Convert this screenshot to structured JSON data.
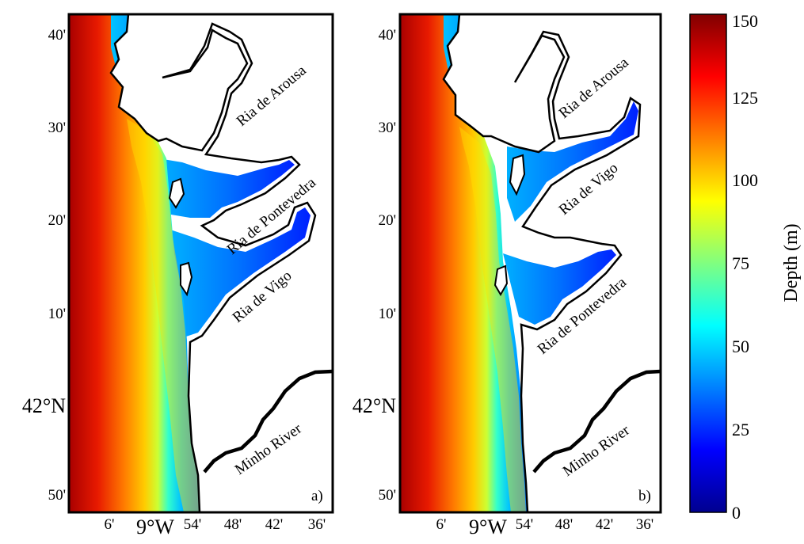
{
  "colorbar": {
    "label": "Depth (m)",
    "ticks": [
      "0",
      "25",
      "50",
      "75",
      "100",
      "125",
      "150"
    ],
    "range": [
      0,
      150
    ],
    "colors": [
      "#00008f",
      "#0000ff",
      "#0080ff",
      "#00ffff",
      "#80ff80",
      "#ffff00",
      "#ff8000",
      "#ff0000",
      "#800000"
    ]
  },
  "lat_ticks": [
    "40'",
    "30'",
    "20'",
    "10'",
    "42°N",
    "50'"
  ],
  "lon_ticks": [
    "6'",
    "9°W",
    "54'",
    "48'",
    "42'",
    "36'"
  ],
  "panels": [
    {
      "id": "a",
      "panel_label": "a)",
      "places": [
        "Ria de Arousa",
        "Ria de Pontevedra",
        "Ria de Vigo",
        "Minho River"
      ]
    },
    {
      "id": "b",
      "panel_label": "b)",
      "places": [
        "Ria de Arousa",
        "Ria de Vigo",
        "Ria de Pontevedra",
        "Minho River"
      ]
    }
  ]
}
